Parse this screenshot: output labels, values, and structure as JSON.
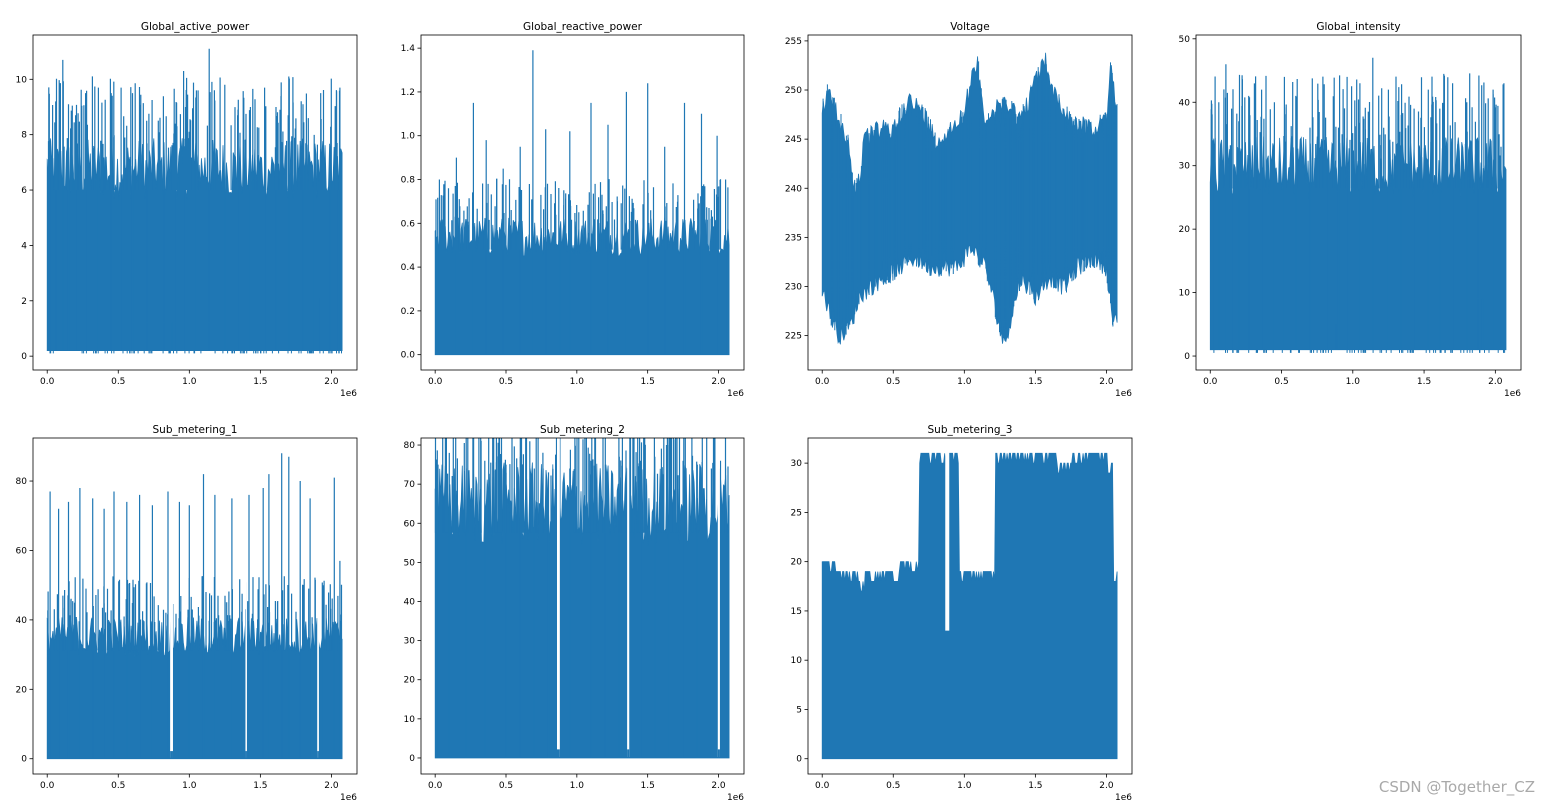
{
  "watermark": "CSDN @Together_CZ",
  "series_color": "#1f77b4",
  "chart_data": [
    {
      "type": "line",
      "title": "Global_active_power",
      "xlim": [
        -100000,
        2180000
      ],
      "ylim": [
        -0.5,
        11.6
      ],
      "xticks": [
        0,
        500000,
        1000000,
        1500000,
        2000000
      ],
      "xticklabels": [
        "0.0",
        "0.5",
        "1.0",
        "1.5",
        "2.0"
      ],
      "xoffset": "1e6",
      "yticks": [
        0,
        2,
        4,
        6,
        8,
        10
      ],
      "yticklabels": [
        "0",
        "2",
        "4",
        "6",
        "8",
        "10"
      ],
      "x_max": 2075000,
      "baseline": 0.2,
      "typical_top": 7.5,
      "envelope_min": 0.1,
      "peaks": [
        [
          20000,
          7.8
        ],
        [
          60000,
          9.2
        ],
        [
          110000,
          10.7
        ],
        [
          150000,
          9.1
        ],
        [
          200000,
          8.7
        ],
        [
          270000,
          9.5
        ],
        [
          360000,
          9.7
        ],
        [
          450000,
          9.5
        ],
        [
          520000,
          9.7
        ],
        [
          600000,
          9.5
        ],
        [
          700000,
          8.5
        ],
        [
          820000,
          7.1
        ],
        [
          880000,
          1.2
        ],
        [
          900000,
          8.4
        ],
        [
          960000,
          10.3
        ],
        [
          1050000,
          9.6
        ],
        [
          1140000,
          11.1
        ],
        [
          1250000,
          9.8
        ],
        [
          1340000,
          8.7
        ],
        [
          1430000,
          9.0
        ],
        [
          1530000,
          9.7
        ],
        [
          1610000,
          9.0
        ],
        [
          1700000,
          10.1
        ],
        [
          1800000,
          9.1
        ],
        [
          1880000,
          6.5
        ],
        [
          1910000,
          2.1
        ],
        [
          1990000,
          6.5
        ],
        [
          2040000,
          7.7
        ],
        [
          2060000,
          9.7
        ]
      ],
      "grid": false,
      "legend": false
    },
    {
      "type": "line",
      "title": "Global_reactive_power",
      "xlim": [
        -100000,
        2180000
      ],
      "ylim": [
        -0.07,
        1.46
      ],
      "xticks": [
        0,
        500000,
        1000000,
        1500000,
        2000000
      ],
      "xticklabels": [
        "0.0",
        "0.5",
        "1.0",
        "1.5",
        "2.0"
      ],
      "xoffset": "1e6",
      "yticks": [
        0,
        0.2,
        0.4,
        0.6,
        0.8,
        1.0,
        1.2,
        1.4
      ],
      "yticklabels": [
        "0.0",
        "0.2",
        "0.4",
        "0.6",
        "0.8",
        "1.0",
        "1.2",
        "1.4"
      ],
      "x_max": 2075000,
      "baseline": 0.0,
      "typical_top": 0.6,
      "envelope_min": 0.0,
      "peaks": [
        [
          30000,
          0.8
        ],
        [
          150000,
          0.9
        ],
        [
          270000,
          1.15
        ],
        [
          360000,
          0.98
        ],
        [
          480000,
          0.85
        ],
        [
          600000,
          0.95
        ],
        [
          690000,
          1.39
        ],
        [
          780000,
          1.03
        ],
        [
          880000,
          0.55
        ],
        [
          950000,
          1.02
        ],
        [
          1100000,
          1.15
        ],
        [
          1220000,
          1.05
        ],
        [
          1350000,
          1.2
        ],
        [
          1500000,
          1.24
        ],
        [
          1620000,
          0.95
        ],
        [
          1760000,
          1.15
        ],
        [
          1880000,
          1.1
        ],
        [
          1990000,
          1.0
        ],
        [
          2050000,
          0.8
        ]
      ],
      "grid": false,
      "legend": false
    },
    {
      "type": "line",
      "title": "Voltage",
      "xlim": [
        -100000,
        2180000
      ],
      "ylim": [
        221.5,
        255.6
      ],
      "xticks": [
        0,
        500000,
        1000000,
        1500000,
        2000000
      ],
      "xticklabels": [
        "0.0",
        "0.5",
        "1.0",
        "1.5",
        "2.0"
      ],
      "xoffset": "1e6",
      "yticks": [
        225,
        230,
        235,
        240,
        245,
        250,
        255
      ],
      "yticklabels": [
        "225",
        "230",
        "235",
        "240",
        "245",
        "250",
        "255"
      ],
      "x_max": 2075000,
      "upper_envelope": [
        [
          0,
          249
        ],
        [
          40000,
          251
        ],
        [
          120000,
          248
        ],
        [
          180000,
          246
        ],
        [
          220000,
          241
        ],
        [
          260000,
          242
        ],
        [
          300000,
          246
        ],
        [
          400000,
          247
        ],
        [
          500000,
          247
        ],
        [
          600000,
          250
        ],
        [
          700000,
          249
        ],
        [
          800000,
          246
        ],
        [
          900000,
          247
        ],
        [
          1000000,
          249
        ],
        [
          1090000,
          254
        ],
        [
          1150000,
          248
        ],
        [
          1300000,
          250
        ],
        [
          1400000,
          248
        ],
        [
          1500000,
          252
        ],
        [
          1570000,
          254
        ],
        [
          1650000,
          250
        ],
        [
          1750000,
          248
        ],
        [
          1900000,
          247
        ],
        [
          2000000,
          248
        ],
        [
          2030000,
          253
        ],
        [
          2075000,
          249
        ]
      ],
      "lower_envelope": [
        [
          0,
          229
        ],
        [
          60000,
          226
        ],
        [
          120000,
          224
        ],
        [
          200000,
          225
        ],
        [
          260000,
          228
        ],
        [
          340000,
          229
        ],
        [
          450000,
          230
        ],
        [
          550000,
          231
        ],
        [
          650000,
          232
        ],
        [
          750000,
          231
        ],
        [
          850000,
          231
        ],
        [
          950000,
          231
        ],
        [
          1050000,
          233
        ],
        [
          1150000,
          231
        ],
        [
          1280000,
          223
        ],
        [
          1400000,
          230
        ],
        [
          1500000,
          228
        ],
        [
          1600000,
          230
        ],
        [
          1700000,
          229
        ],
        [
          1800000,
          231
        ],
        [
          1900000,
          232
        ],
        [
          2000000,
          231
        ],
        [
          2040000,
          226
        ],
        [
          2075000,
          225
        ]
      ],
      "grid": false,
      "legend": false
    },
    {
      "type": "line",
      "title": "Global_intensity",
      "xlim": [
        -100000,
        2180000
      ],
      "ylim": [
        -2.2,
        50.6
      ],
      "xticks": [
        0,
        500000,
        1000000,
        1500000,
        2000000
      ],
      "xticklabels": [
        "0.0",
        "0.5",
        "1.0",
        "1.5",
        "2.0"
      ],
      "xoffset": "1e6",
      "yticks": [
        0,
        10,
        20,
        30,
        40,
        50
      ],
      "yticklabels": [
        "0",
        "10",
        "20",
        "30",
        "40",
        "50"
      ],
      "x_max": 2075000,
      "baseline": 1.0,
      "typical_top": 33,
      "envelope_min": 0.5,
      "peaks": [
        [
          20000,
          34
        ],
        [
          60000,
          40
        ],
        [
          110000,
          46
        ],
        [
          150000,
          39
        ],
        [
          200000,
          37
        ],
        [
          270000,
          41
        ],
        [
          360000,
          42
        ],
        [
          450000,
          40
        ],
        [
          520000,
          44
        ],
        [
          600000,
          41
        ],
        [
          700000,
          36
        ],
        [
          820000,
          31
        ],
        [
          880000,
          5
        ],
        [
          900000,
          36
        ],
        [
          960000,
          44
        ],
        [
          1050000,
          43
        ],
        [
          1140000,
          47
        ],
        [
          1250000,
          42
        ],
        [
          1340000,
          38
        ],
        [
          1430000,
          39
        ],
        [
          1530000,
          42
        ],
        [
          1610000,
          39
        ],
        [
          1700000,
          43
        ],
        [
          1800000,
          40
        ],
        [
          1880000,
          28
        ],
        [
          1910000,
          9
        ],
        [
          1990000,
          28
        ],
        [
          2040000,
          33
        ],
        [
          2060000,
          43
        ]
      ],
      "grid": false,
      "legend": false
    },
    {
      "type": "line",
      "title": "Sub_metering_1",
      "xlim": [
        -100000,
        2180000
      ],
      "ylim": [
        -4.4,
        92.4
      ],
      "xticks": [
        0,
        500000,
        1000000,
        1500000,
        2000000
      ],
      "xticklabels": [
        "0.0",
        "0.5",
        "1.0",
        "1.5",
        "2.0"
      ],
      "xoffset": "1e6",
      "yticks": [
        0,
        20,
        40,
        60,
        80
      ],
      "yticklabels": [
        "0",
        "20",
        "40",
        "60",
        "80"
      ],
      "x_max": 2075000,
      "baseline": 0,
      "typical_top": 39,
      "envelope_min": 0,
      "gaps": [
        [
          865000,
          885000
        ],
        [
          1395000,
          1400000
        ],
        [
          1900000,
          1912000
        ]
      ],
      "peaks": [
        [
          20000,
          77
        ],
        [
          80000,
          72
        ],
        [
          150000,
          74
        ],
        [
          230000,
          78
        ],
        [
          320000,
          75
        ],
        [
          400000,
          72
        ],
        [
          470000,
          77
        ],
        [
          560000,
          74
        ],
        [
          650000,
          76
        ],
        [
          740000,
          73
        ],
        [
          850000,
          77
        ],
        [
          930000,
          74
        ],
        [
          1000000,
          73
        ],
        [
          1100000,
          82
        ],
        [
          1180000,
          76
        ],
        [
          1300000,
          75
        ],
        [
          1420000,
          76
        ],
        [
          1520000,
          78
        ],
        [
          1560000,
          82
        ],
        [
          1650000,
          88
        ],
        [
          1700000,
          87
        ],
        [
          1780000,
          80
        ],
        [
          1850000,
          75
        ],
        [
          1940000,
          50
        ],
        [
          2020000,
          81
        ],
        [
          2060000,
          57
        ]
      ],
      "grid": false,
      "legend": false
    },
    {
      "type": "line",
      "title": "Sub_metering_2",
      "xlim": [
        -100000,
        2180000
      ],
      "ylim": [
        -4.1,
        81.8
      ],
      "xticks": [
        0,
        500000,
        1000000,
        1500000,
        2000000
      ],
      "xticklabels": [
        "0.0",
        "0.5",
        "1.0",
        "1.5",
        "2.0"
      ],
      "xoffset": "1e6",
      "yticks": [
        0,
        10,
        20,
        30,
        40,
        50,
        60,
        70,
        80
      ],
      "yticklabels": [
        "0",
        "10",
        "20",
        "30",
        "40",
        "50",
        "60",
        "70",
        "80"
      ],
      "x_max": 2075000,
      "baseline": 0,
      "typical_top": 72,
      "envelope_min": 0,
      "gaps": [
        [
          860000,
          880000
        ],
        [
          1355000,
          1370000
        ],
        [
          1995000,
          2010000
        ]
      ],
      "peaks": [
        [
          20000,
          75
        ],
        [
          100000,
          78
        ],
        [
          220000,
          74
        ],
        [
          350000,
          76
        ],
        [
          500000,
          75
        ],
        [
          600000,
          77
        ],
        [
          700000,
          74
        ],
        [
          800000,
          73
        ],
        [
          950000,
          74
        ],
        [
          1100000,
          76
        ],
        [
          1200000,
          75
        ],
        [
          1300000,
          77
        ],
        [
          1450000,
          76
        ],
        [
          1550000,
          77
        ],
        [
          1650000,
          80
        ],
        [
          1750000,
          76
        ],
        [
          1850000,
          75
        ],
        [
          1950000,
          74
        ],
        [
          2050000,
          74
        ]
      ],
      "grid": false,
      "legend": false
    },
    {
      "type": "line",
      "title": "Sub_metering_3",
      "xlim": [
        -100000,
        2180000
      ],
      "ylim": [
        -1.55,
        32.55
      ],
      "xticks": [
        0,
        500000,
        1000000,
        1500000,
        2000000
      ],
      "xticklabels": [
        "0.0",
        "0.5",
        "1.0",
        "1.5",
        "2.0"
      ],
      "xoffset": "1e6",
      "yticks": [
        0,
        5,
        10,
        15,
        20,
        25,
        30
      ],
      "yticklabels": [
        "0",
        "5",
        "10",
        "15",
        "20",
        "25",
        "30"
      ],
      "x_max": 2075000,
      "step_top": [
        [
          0,
          20
        ],
        [
          100000,
          19
        ],
        [
          250000,
          18
        ],
        [
          300000,
          19
        ],
        [
          550000,
          20
        ],
        [
          680000,
          31
        ],
        [
          960000,
          19
        ],
        [
          1220000,
          31
        ],
        [
          1650000,
          30
        ],
        [
          1760000,
          31
        ],
        [
          2010000,
          30
        ],
        [
          2050000,
          19
        ],
        [
          2075000,
          19
        ]
      ],
      "notches": [
        [
          880000,
          13
        ]
      ],
      "grid": false,
      "legend": false
    }
  ]
}
